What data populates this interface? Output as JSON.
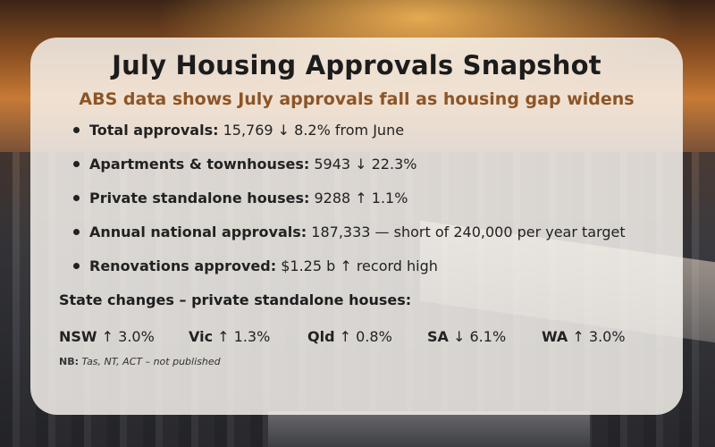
{
  "title": "July Housing Approvals Snapshot",
  "subtitle": "ABS data shows July approvals fall as housing gap widens",
  "points": [
    {
      "label": "Total approvals:",
      "value": "15,769 ↓ 8.2% from June"
    },
    {
      "label": "Apartments & townhouses:",
      "value": "5943 ↓ 22.3%"
    },
    {
      "label": "Private standalone houses:",
      "value": "9288 ↑ 1.1%"
    },
    {
      "label": "Annual national approvals:",
      "value": "187,333 — short of 240,000 per year target"
    },
    {
      "label": "Renovations approved:",
      "value": "$1.25 b ↑ record high"
    }
  ],
  "state_heading": "State changes – private standalone houses:",
  "states": [
    {
      "name": "NSW",
      "change": "↑ 3.0%"
    },
    {
      "name": "Vic",
      "change": "↑ 1.3%"
    },
    {
      "name": "Qld",
      "change": "↑ 0.8%"
    },
    {
      "name": "SA",
      "change": "↓ 6.1%"
    },
    {
      "name": "WA",
      "change": "↑ 3.0%"
    }
  ],
  "note": {
    "label": "NB:",
    "text": "Tas, NT, ACT – not published"
  }
}
